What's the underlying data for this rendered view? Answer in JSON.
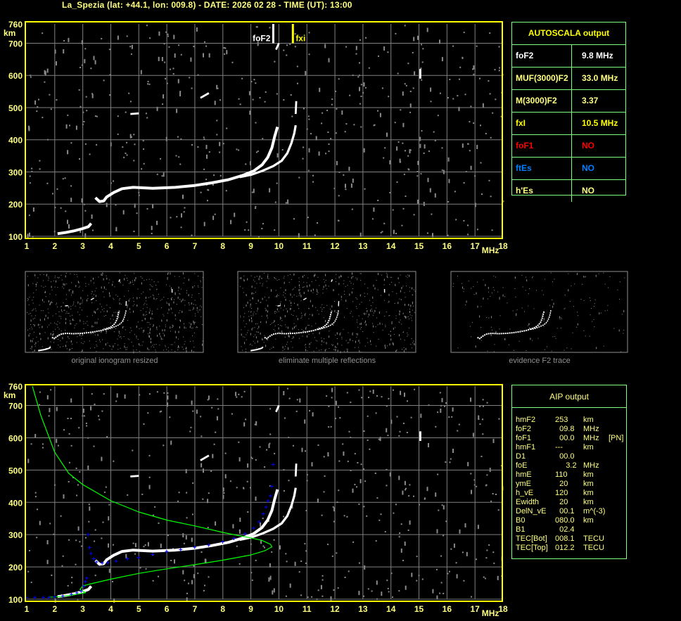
{
  "title": "La_Spezia (lat: +44.1, lon: 009.8) - DATE: 2026 02 28 - TIME (UT): 13:00",
  "colors": {
    "title": "#ffff80",
    "axis_frame": "#ffff00",
    "axis_labels": "#ffff80",
    "grid": "#808080",
    "trace": "#ffffff",
    "noise": "#8a8a8a",
    "table_border": "#80ff80",
    "fxI": "#ffff00",
    "foF1": "#ff0000",
    "ftEs": "#0080ff",
    "profile": "#00ff00",
    "aip_points": "#0000ff"
  },
  "axes": {
    "x_ticks": [
      "1",
      "2",
      "3",
      "4",
      "5",
      "6",
      "7",
      "8",
      "9",
      "10",
      "11",
      "12",
      "13",
      "14",
      "15",
      "16",
      "17",
      "18"
    ],
    "x_unit": "MHz",
    "y_ticks": [
      "760",
      "700",
      "600",
      "500",
      "400",
      "300",
      "200",
      "100"
    ],
    "y_unit": "km",
    "x_range_mhz": [
      1,
      18
    ],
    "y_range_km": [
      100,
      760
    ],
    "grid": true
  },
  "markers": {
    "foF2": {
      "label": "foF2",
      "freq_mhz": 9.8
    },
    "fxI": {
      "label": "fxi",
      "freq_mhz": 10.5
    }
  },
  "traces": {
    "e_layer": [
      [
        2.1,
        108
      ],
      [
        2.4,
        112
      ],
      [
        2.7,
        117
      ],
      [
        3.0,
        124
      ],
      [
        3.2,
        130
      ],
      [
        3.3,
        140
      ]
    ],
    "f_ordinary": [
      [
        3.45,
        220
      ],
      [
        3.6,
        208
      ],
      [
        3.75,
        210
      ],
      [
        3.85,
        222
      ],
      [
        4.1,
        236
      ],
      [
        4.4,
        248
      ],
      [
        4.8,
        252
      ],
      [
        5.5,
        249
      ],
      [
        6.3,
        252
      ],
      [
        7.0,
        258
      ],
      [
        7.6,
        266
      ],
      [
        8.2,
        276
      ],
      [
        8.7,
        289
      ],
      [
        9.1,
        303
      ],
      [
        9.4,
        322
      ],
      [
        9.6,
        345
      ],
      [
        9.75,
        375
      ],
      [
        9.85,
        410
      ],
      [
        9.95,
        440
      ]
    ],
    "f_extraordinary": [
      [
        8.6,
        284
      ],
      [
        9.0,
        291
      ],
      [
        9.4,
        303
      ],
      [
        9.8,
        318
      ],
      [
        10.1,
        335
      ],
      [
        10.3,
        358
      ],
      [
        10.45,
        390
      ],
      [
        10.55,
        420
      ],
      [
        10.6,
        445
      ]
    ],
    "upper_fragments": [
      [
        [
          9.9,
          680
        ],
        [
          10.0,
          700
        ]
      ],
      [
        [
          10.6,
          480
        ],
        [
          10.62,
          520
        ]
      ],
      [
        [
          7.2,
          530
        ],
        [
          7.5,
          545
        ]
      ],
      [
        [
          4.7,
          480
        ],
        [
          5.0,
          482
        ]
      ],
      [
        [
          15.05,
          590
        ],
        [
          15.05,
          620
        ]
      ]
    ],
    "aip_profile": [
      [
        1.2,
        760
      ],
      [
        1.5,
        670
      ],
      [
        2.0,
        555
      ],
      [
        2.5,
        490
      ],
      [
        3.0,
        455
      ],
      [
        4.0,
        405
      ],
      [
        5.0,
        370
      ],
      [
        6.0,
        345
      ],
      [
        7.0,
        327
      ],
      [
        8.0,
        307
      ],
      [
        8.5,
        298
      ],
      [
        9.0,
        290
      ],
      [
        9.4,
        282
      ],
      [
        9.7,
        270
      ],
      [
        9.75,
        262
      ],
      [
        9.5,
        250
      ],
      [
        9.0,
        237
      ],
      [
        8.0,
        221
      ],
      [
        7.0,
        207
      ],
      [
        6.0,
        194
      ],
      [
        5.0,
        180
      ],
      [
        4.0,
        162
      ],
      [
        3.3,
        148
      ],
      [
        3.0,
        141
      ],
      [
        2.9,
        130
      ],
      [
        3.1,
        120
      ],
      [
        2.7,
        114
      ],
      [
        2.2,
        108
      ],
      [
        1.8,
        106
      ]
    ],
    "aip_points": [
      [
        1.0,
        105
      ],
      [
        1.3,
        105
      ],
      [
        1.6,
        105
      ],
      [
        1.8,
        105
      ],
      [
        2.0,
        108
      ],
      [
        2.3,
        110
      ],
      [
        2.6,
        115
      ],
      [
        2.8,
        120
      ],
      [
        2.95,
        125
      ],
      [
        3.05,
        140
      ],
      [
        3.1,
        155
      ],
      [
        3.15,
        165
      ],
      [
        3.2,
        300
      ],
      [
        3.25,
        260
      ],
      [
        3.3,
        242
      ],
      [
        3.4,
        225
      ],
      [
        3.5,
        215
      ],
      [
        3.7,
        212
      ],
      [
        3.9,
        213
      ],
      [
        4.2,
        218
      ],
      [
        4.6,
        225
      ],
      [
        5.0,
        230
      ],
      [
        5.5,
        238
      ],
      [
        6.0,
        248
      ],
      [
        6.5,
        254
      ],
      [
        7.0,
        261
      ],
      [
        7.5,
        268
      ],
      [
        8.0,
        278
      ],
      [
        8.4,
        288
      ],
      [
        8.8,
        303
      ],
      [
        9.1,
        320
      ],
      [
        9.3,
        340
      ],
      [
        9.45,
        365
      ],
      [
        9.55,
        385
      ],
      [
        9.62,
        405
      ],
      [
        9.7,
        420
      ],
      [
        9.75,
        450
      ],
      [
        9.8,
        517
      ]
    ]
  },
  "autoscala": {
    "title": "AUTOSCALA output",
    "rows": [
      {
        "key": "foF2",
        "value": "9.8 MHz",
        "color": "#ffffff",
        "value_color": "#ffffff"
      },
      {
        "key": "MUF(3000)F2",
        "value": "33.0 MHz",
        "color": "#ffff80",
        "value_color": "#ffff80"
      },
      {
        "key": "M(3000)F2",
        "value": "3.37",
        "color": "#ffff80",
        "value_color": "#ffff80"
      },
      {
        "key": "fxI",
        "value": "10.5 MHz",
        "color": "#ffff00",
        "value_color": "#ffff00"
      },
      {
        "key": "foF1",
        "value": "NO",
        "color": "#ff0000",
        "value_color": "#ff0000"
      },
      {
        "key": "ftEs",
        "value": "NO",
        "color": "#0080ff",
        "value_color": "#0080ff"
      },
      {
        "key": "h'Es",
        "value": "NO",
        "color": "#ffff80",
        "value_color": "#ffff80"
      }
    ]
  },
  "aip": {
    "title": "AIP output",
    "rows": [
      {
        "k": "hmF2",
        "v": "253",
        "u": "km",
        "x": ""
      },
      {
        "k": "foF2",
        "v": "  09.8",
        "u": "MHz",
        "x": ""
      },
      {
        "k": "foF1",
        "v": "  00.0",
        "u": "MHz",
        "x": "[PN]"
      },
      {
        "k": "hmF1",
        "v": "---",
        "u": "km",
        "x": ""
      },
      {
        "k": "D1",
        "v": "  00.0",
        "u": "",
        "x": ""
      },
      {
        "k": "foE",
        "v": "     3.2",
        "u": "MHz",
        "x": ""
      },
      {
        "k": "hmE",
        "v": "110",
        "u": "km",
        "x": ""
      },
      {
        "k": "ymE",
        "v": "  20",
        "u": "km",
        "x": ""
      },
      {
        "k": "h_vE",
        "v": "120",
        "u": "km",
        "x": ""
      },
      {
        "k": "Ewidth",
        "v": "  20",
        "u": "km",
        "x": ""
      },
      {
        "k": "DelN_vE",
        "v": "  00.1",
        "u": "m^(-3)",
        "x": ""
      },
      {
        "k": "B0",
        "v": "080.0",
        "u": "km",
        "x": ""
      },
      {
        "k": "B1",
        "v": "  02.4",
        "u": "",
        "x": ""
      },
      {
        "k": "TEC[Bot]",
        "v": "008.1",
        "u": "TECU",
        "x": ""
      },
      {
        "k": "TEC[Top]",
        "v": "012.2",
        "u": "TECU",
        "x": ""
      }
    ]
  },
  "thumbnails": [
    {
      "caption": "original ionogram resized"
    },
    {
      "caption": "eliminate multiple reflections"
    },
    {
      "caption": "evidence F2 trace"
    }
  ]
}
